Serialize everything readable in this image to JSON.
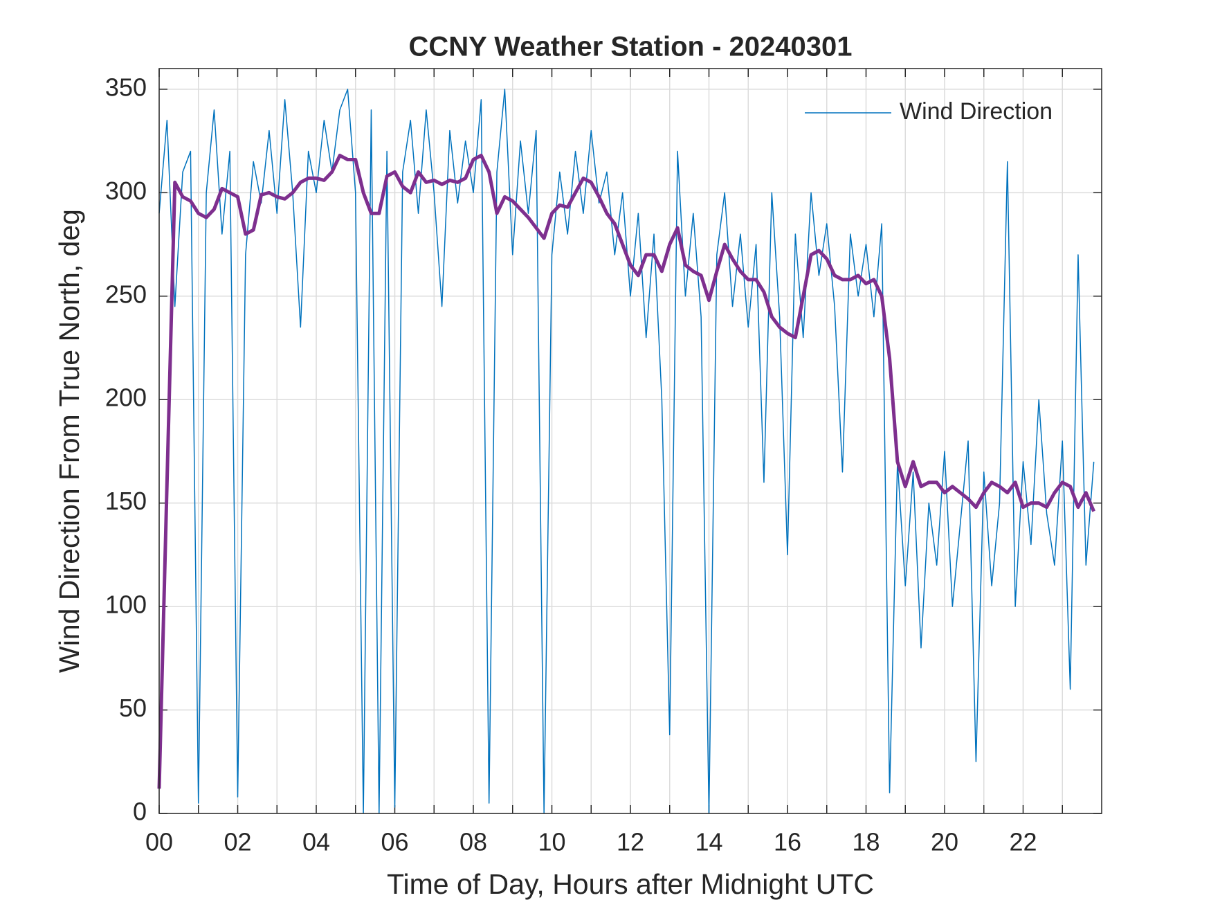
{
  "chart_data": {
    "type": "line",
    "title": "CCNY Weather Station - 20240301",
    "xlabel": "Time of Day, Hours after Midnight UTC",
    "ylabel": "Wind Direction From True North, deg",
    "x": [
      0,
      0.2,
      0.4,
      0.6,
      0.8,
      1,
      1.2,
      1.4,
      1.6,
      1.8,
      2,
      2.2,
      2.4,
      2.6,
      2.8,
      3,
      3.2,
      3.4,
      3.6,
      3.8,
      4,
      4.2,
      4.4,
      4.6,
      4.8,
      5,
      5.2,
      5.4,
      5.6,
      5.8,
      6,
      6.2,
      6.4,
      6.6,
      6.8,
      7,
      7.2,
      7.4,
      7.6,
      7.8,
      8,
      8.2,
      8.4,
      8.6,
      8.8,
      9,
      9.2,
      9.4,
      9.6,
      9.8,
      10,
      10.2,
      10.4,
      10.6,
      10.8,
      11,
      11.2,
      11.4,
      11.6,
      11.8,
      12,
      12.2,
      12.4,
      12.6,
      12.8,
      13,
      13.2,
      13.4,
      13.6,
      13.8,
      14,
      14.2,
      14.4,
      14.6,
      14.8,
      15,
      15.2,
      15.4,
      15.6,
      15.8,
      16,
      16.2,
      16.4,
      16.6,
      16.8,
      17,
      17.2,
      17.4,
      17.6,
      17.8,
      18,
      18.2,
      18.4,
      18.6,
      18.8,
      19,
      19.2,
      19.4,
      19.6,
      19.8,
      20,
      20.2,
      20.4,
      20.6,
      20.8,
      21,
      21.2,
      21.4,
      21.6,
      21.8,
      22,
      22.2,
      22.4,
      22.6,
      22.8,
      23,
      23.2,
      23.4,
      23.6,
      23.8
    ],
    "series": [
      {
        "name": "Wind Direction",
        "color": "#0072BD",
        "width": 1.5,
        "values": [
          290,
          335,
          245,
          310,
          320,
          5,
          300,
          340,
          280,
          320,
          8,
          270,
          315,
          295,
          330,
          290,
          345,
          300,
          235,
          320,
          300,
          335,
          310,
          340,
          350,
          300,
          0,
          340,
          0,
          320,
          3,
          310,
          335,
          290,
          340,
          300,
          245,
          330,
          295,
          325,
          300,
          345,
          5,
          310,
          350,
          270,
          325,
          290,
          330,
          0,
          270,
          310,
          280,
          320,
          290,
          330,
          295,
          310,
          270,
          300,
          250,
          290,
          230,
          280,
          200,
          38,
          320,
          250,
          290,
          240,
          0,
          270,
          300,
          245,
          280,
          235,
          275,
          160,
          300,
          240,
          125,
          280,
          230,
          300,
          260,
          285,
          245,
          165,
          280,
          250,
          275,
          240,
          285,
          10,
          170,
          110,
          165,
          80,
          150,
          120,
          175,
          100,
          140,
          180,
          25,
          165,
          110,
          150,
          315,
          100,
          170,
          130,
          200,
          145,
          120,
          180,
          60,
          270,
          120,
          170
        ]
      },
      {
        "color": "#7E2F8E",
        "width": 5,
        "values": [
          12,
          160,
          305,
          298,
          296,
          290,
          288,
          292,
          302,
          300,
          298,
          280,
          282,
          299,
          300,
          298,
          297,
          300,
          305,
          307,
          307,
          306,
          310,
          318,
          316,
          316,
          300,
          290,
          290,
          308,
          310,
          303,
          300,
          310,
          305,
          306,
          304,
          306,
          305,
          307,
          316,
          318,
          310,
          290,
          298,
          296,
          292,
          288,
          283,
          278,
          290,
          294,
          293,
          300,
          307,
          305,
          298,
          290,
          285,
          275,
          265,
          260,
          270,
          270,
          262,
          275,
          283,
          265,
          262,
          260,
          248,
          262,
          275,
          268,
          262,
          258,
          258,
          252,
          240,
          235,
          232,
          230,
          250,
          270,
          272,
          268,
          260,
          258,
          258,
          260,
          256,
          258,
          250,
          220,
          170,
          158,
          170,
          158,
          160,
          160,
          155,
          158,
          155,
          152,
          148,
          155,
          160,
          158,
          155,
          160,
          148,
          150,
          150,
          148,
          155,
          160,
          158,
          148,
          155,
          146
        ]
      }
    ],
    "xlim": [
      0,
      24
    ],
    "xticks": [
      {
        "value": 0,
        "label": "00"
      },
      {
        "value": 2,
        "label": "02"
      },
      {
        "value": 4,
        "label": "04"
      },
      {
        "value": 6,
        "label": "06"
      },
      {
        "value": 8,
        "label": "08"
      },
      10,
      12,
      14,
      16,
      18,
      20,
      22
    ],
    "xminorticks": [
      1,
      3,
      5,
      7,
      9,
      11,
      13,
      15,
      17,
      19,
      21,
      23
    ],
    "ylim": [
      0,
      360
    ],
    "yticks": [
      0,
      50,
      100,
      150,
      200,
      250,
      300,
      350
    ],
    "grid": true,
    "legend": "upper right"
  }
}
